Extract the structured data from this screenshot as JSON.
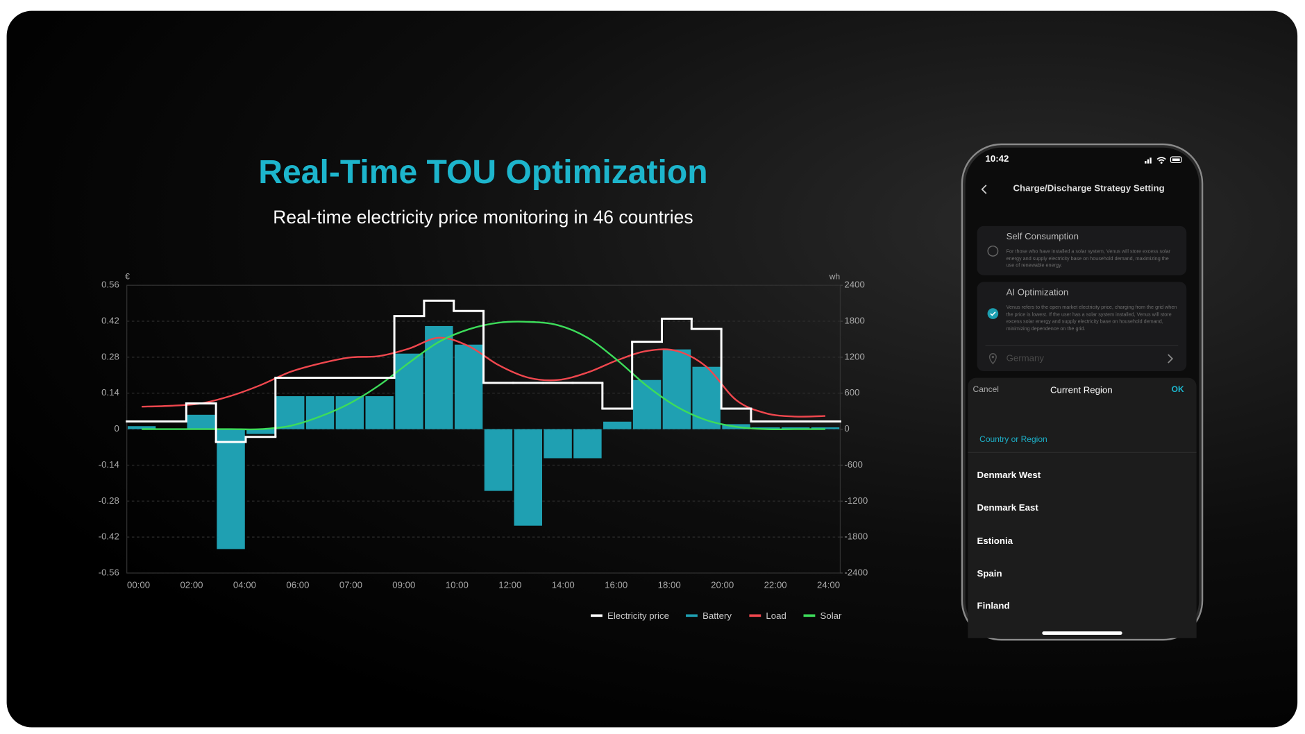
{
  "chart_data": {
    "type": "bar",
    "title": "Real-Time TOU Optimization",
    "subtitle": "Real-time electricity price monitoring in 46 countries",
    "y_unit": "€",
    "y2_unit": "wh",
    "x_labels": [
      "00:00",
      "02:00",
      "04:00",
      "06:00",
      "07:00",
      "09:00",
      "10:00",
      "12:00",
      "14:00",
      "16:00",
      "18:00",
      "20:00",
      "22:00",
      "24:00"
    ],
    "ylim": [
      -0.56,
      0.56
    ],
    "yticks": [
      0.56,
      0.42,
      0.28,
      0.14,
      0,
      -0.14,
      -0.28,
      -0.42,
      -0.56
    ],
    "y2lim": [
      -2400,
      2400
    ],
    "y2ticks": [
      2400,
      1800,
      1200,
      600,
      0,
      -600,
      -1200,
      -1800,
      -2400
    ],
    "grid": true,
    "legend": "bottom-right",
    "series": [
      {
        "name": "Electricity price",
        "type": "step",
        "axis": "y",
        "color": "#ffffff",
        "values": [
          0.03,
          0.03,
          0.1,
          -0.05,
          -0.03,
          0.2,
          0.2,
          0.2,
          0.2,
          0.44,
          0.5,
          0.46,
          0.18,
          0.18,
          0.18,
          0.18,
          0.08,
          0.34,
          0.43,
          0.39,
          0.08,
          0.03,
          0.03,
          0.03
        ]
      },
      {
        "name": "Battery",
        "type": "bar",
        "axis": "y2",
        "color": "#1fa0b2",
        "values": [
          50,
          0,
          240,
          -2000,
          -80,
          550,
          550,
          550,
          550,
          1260,
          1720,
          1410,
          -1030,
          -1610,
          -485,
          -485,
          125,
          820,
          1330,
          1040,
          83,
          30,
          30,
          30
        ]
      },
      {
        "name": "Load",
        "type": "line",
        "axis": "y2",
        "color": "#f0474e",
        "values": [
          375,
          390,
          430,
          555,
          735,
          955,
          1095,
          1195,
          1220,
          1345,
          1525,
          1385,
          1070,
          860,
          820,
          945,
          1150,
          1305,
          1305,
          1040,
          485,
          265,
          210,
          220
        ]
      },
      {
        "name": "Solar",
        "type": "line",
        "axis": "y2",
        "color": "#3ddc5a",
        "values": [
          0,
          0,
          0,
          0,
          0,
          55,
          210,
          430,
          735,
          1110,
          1455,
          1665,
          1775,
          1790,
          1735,
          1525,
          1150,
          720,
          375,
          150,
          40,
          0,
          0,
          0
        ]
      }
    ]
  },
  "phone": {
    "time": "10:42",
    "header": "Charge/Discharge Strategy Setting",
    "options": [
      {
        "title": "Self Consumption",
        "description": "For those who have installed a solar system, Venus will store excess solar energy and supply electricity base on household demand, maximizing the use of renewable energy."
      },
      {
        "title": "AI Optimization",
        "description": "Venus refers to the open market electricity price, charging from the grid when the price is lowest. If the user has a solar system installed, Venus will store excess solar energy and supply electricity base on household demand, minimizing dependence on the grid."
      }
    ],
    "location": "Germany",
    "sheet": {
      "cancel": "Cancel",
      "title": "Current Region",
      "ok": "OK",
      "section": "Country or Region",
      "items": [
        "Denmark West",
        "Denmark East",
        "Estionia",
        "Spain",
        "Finland"
      ]
    }
  }
}
